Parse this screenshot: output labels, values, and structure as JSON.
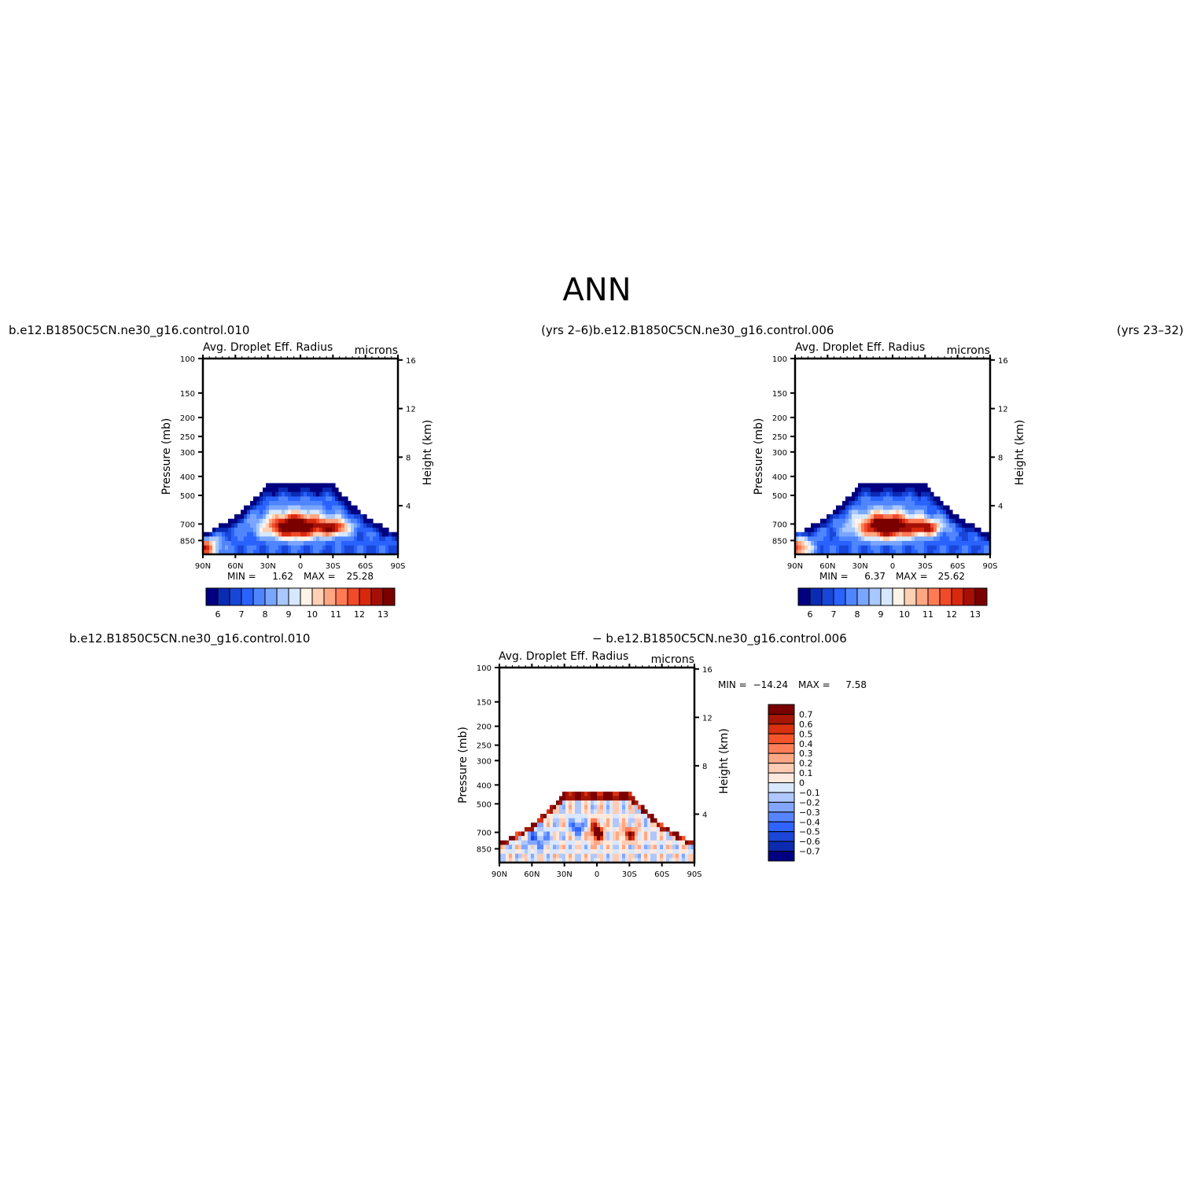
{
  "page_title": "ANN",
  "colors": {
    "scale": [
      "#000080",
      "#0a2bb4",
      "#1846d8",
      "#2962ff",
      "#4f86ff",
      "#7aa6ff",
      "#a9c8ff",
      "#d6e8ff",
      "#fff2e6",
      "#ffd0b4",
      "#ffa683",
      "#ff7a55",
      "#f04a28",
      "#d8280d",
      "#a50f05",
      "#7a0000"
    ],
    "diff_scale": [
      "#000080",
      "#0d2bb0",
      "#1c46d6",
      "#2f63ff",
      "#5684ff",
      "#82a6ff",
      "#aec7ff",
      "#d9e7ff",
      "#ffe9dc",
      "#ffcbb3",
      "#ffa785",
      "#ff7e57",
      "#f5542b",
      "#d9300f",
      "#a51605",
      "#7a0000"
    ]
  },
  "chart_data": [
    {
      "type": "heatmap",
      "left_title": "b.e12.B1850C5CN.ne30_g16.control.010",
      "right_title": "(yrs  2–6)",
      "subtitle": "Avg. Droplet Eff. Radius",
      "units": "microns",
      "ylabel": "Pressure (mb)",
      "ylabel_right": "Height (km)",
      "x_ticks": [
        "90N",
        "60N",
        "30N",
        "0",
        "30S",
        "60S",
        "90S"
      ],
      "y_ticks": [
        "100",
        "150",
        "200",
        "250",
        "300",
        "400",
        "500",
        "700",
        "850"
      ],
      "y_ticks_right": [
        "16",
        "12",
        "8",
        "4"
      ],
      "min_label": "MIN =",
      "min": "1.62",
      "max_label": "MAX =",
      "max": "25.28",
      "colorbar_labels": [
        "6",
        "7",
        "8",
        "9",
        "10",
        "11",
        "12",
        "13"
      ]
    },
    {
      "type": "heatmap",
      "left_title": "b.e12.B1850C5CN.ne30_g16.control.006",
      "right_title": "(yrs  23–32)",
      "subtitle": "Avg. Droplet Eff. Radius",
      "units": "microns",
      "ylabel": "Pressure (mb)",
      "ylabel_right": "Height (km)",
      "x_ticks": [
        "90N",
        "60N",
        "30N",
        "0",
        "30S",
        "60S",
        "90S"
      ],
      "y_ticks": [
        "100",
        "150",
        "200",
        "250",
        "300",
        "400",
        "500",
        "700",
        "850"
      ],
      "y_ticks_right": [
        "16",
        "12",
        "8",
        "4"
      ],
      "min_label": "MIN =",
      "min": "6.37",
      "max_label": "MAX =",
      "max": "25.62",
      "colorbar_labels": [
        "6",
        "7",
        "8",
        "9",
        "10",
        "11",
        "12",
        "13"
      ]
    },
    {
      "type": "heatmap",
      "left_title": "b.e12.B1850C5CN.ne30_g16.control.010",
      "center_title": "− b.e12.B1850C5CN.ne30_g16.control.006",
      "subtitle": "Avg. Droplet Eff. Radius",
      "units": "microns",
      "ylabel": "Pressure (mb)",
      "ylabel_right": "Height (km)",
      "x_ticks": [
        "90N",
        "60N",
        "30N",
        "0",
        "30S",
        "60S",
        "90S"
      ],
      "y_ticks": [
        "100",
        "150",
        "200",
        "250",
        "300",
        "400",
        "500",
        "700",
        "850"
      ],
      "y_ticks_right": [
        "16",
        "12",
        "8",
        "4"
      ],
      "min_label": "MIN =",
      "min": "−14.24",
      "max_label": "MAX =",
      "max": "7.58",
      "colorbar_labels": [
        "0.7",
        "0.6",
        "0.5",
        "0.4",
        "0.3",
        "0.2",
        "0.1",
        "0",
        "−0.1",
        "−0.2",
        "−0.3",
        "−0.4",
        "−0.5",
        "−0.6",
        "−0.7"
      ]
    }
  ]
}
